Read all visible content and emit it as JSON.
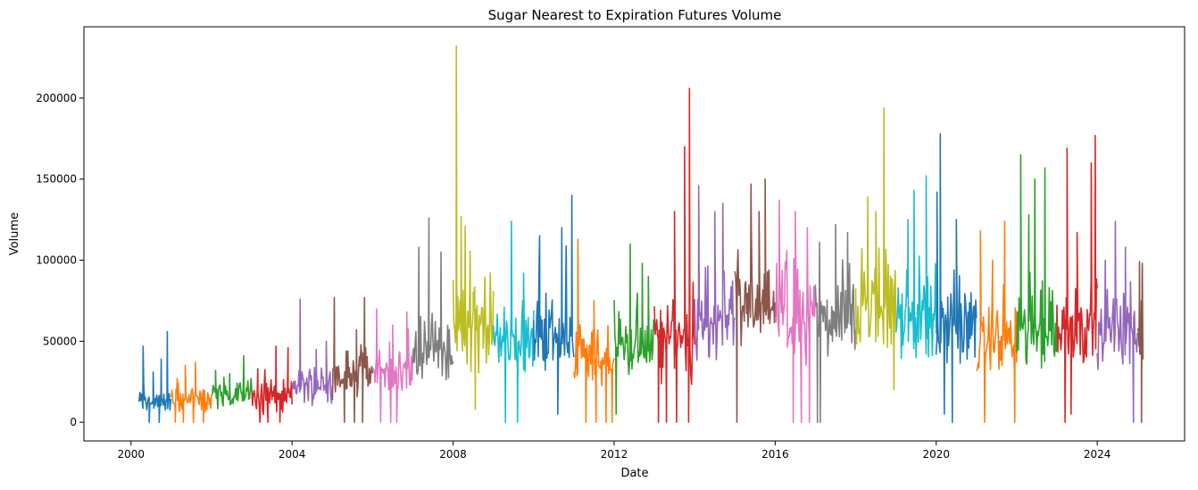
{
  "chart_data": {
    "type": "line",
    "title": "Sugar Nearest to Expiration Futures Volume",
    "xlabel": "Date",
    "ylabel": "Volume",
    "xlim": [
      1998.83,
      2026.17
    ],
    "ylim": [
      -11500,
      244000
    ],
    "x_ticks": [
      2000,
      2004,
      2008,
      2012,
      2016,
      2020,
      2024
    ],
    "x_tick_labels": [
      "2000",
      "2004",
      "2008",
      "2012",
      "2016",
      "2020",
      "2024"
    ],
    "y_ticks": [
      0,
      50000,
      100000,
      150000,
      200000
    ],
    "y_tick_labels": [
      "0",
      "50000",
      "100000",
      "150000",
      "200000"
    ],
    "legend": "none",
    "grid": false,
    "series_note": "One line series per calendar year; values are approximate weekly-resolution summaries (typical level and visible extremes) read off the figure.",
    "series": [
      {
        "name": "2000",
        "color": "#1f77b4",
        "x_start": 2000.2,
        "x_end": 2001.0,
        "base": 13000,
        "noise": 5000,
        "min": 5000,
        "spikes": [
          [
            2000.3,
            47000
          ],
          [
            2000.55,
            31000
          ],
          [
            2000.9,
            56000
          ],
          [
            2000.75,
            39000
          ]
        ],
        "drops": [
          [
            2000.45,
            0
          ],
          [
            2000.7,
            0
          ]
        ]
      },
      {
        "name": "2001",
        "color": "#ff7f0e",
        "x_start": 2001.0,
        "x_end": 2002.0,
        "base": 14000,
        "noise": 6000,
        "min": 0,
        "spikes": [
          [
            2001.35,
            35000
          ],
          [
            2001.6,
            37000
          ],
          [
            2001.15,
            27000
          ]
        ],
        "drops": [
          [
            2001.1,
            0
          ],
          [
            2001.3,
            0
          ],
          [
            2001.55,
            0
          ],
          [
            2001.8,
            0
          ]
        ]
      },
      {
        "name": "2002",
        "color": "#2ca02c",
        "x_start": 2002.0,
        "x_end": 2003.0,
        "base": 17000,
        "noise": 6000,
        "min": 5000,
        "spikes": [
          [
            2002.1,
            32000
          ],
          [
            2002.45,
            30000
          ],
          [
            2002.8,
            41000
          ]
        ],
        "drops": []
      },
      {
        "name": "2003",
        "color": "#d62728",
        "x_start": 2003.0,
        "x_end": 2004.0,
        "base": 15000,
        "noise": 8000,
        "min": 0,
        "spikes": [
          [
            2003.15,
            33000
          ],
          [
            2003.6,
            47000
          ],
          [
            2003.9,
            46000
          ]
        ],
        "drops": [
          [
            2003.2,
            0
          ],
          [
            2003.4,
            0
          ],
          [
            2003.7,
            0
          ]
        ]
      },
      {
        "name": "2004",
        "color": "#9467bd",
        "x_start": 2004.0,
        "x_end": 2005.0,
        "base": 23000,
        "noise": 8000,
        "min": 5000,
        "spikes": [
          [
            2004.2,
            76000
          ],
          [
            2004.6,
            45000
          ],
          [
            2004.85,
            50000
          ]
        ],
        "drops": []
      },
      {
        "name": "2005",
        "color": "#8c564b",
        "x_start": 2005.0,
        "x_end": 2006.0,
        "base": 30000,
        "noise": 12000,
        "min": 0,
        "spikes": [
          [
            2005.05,
            77000
          ],
          [
            2005.6,
            57000
          ],
          [
            2005.8,
            77000
          ]
        ],
        "drops": [
          [
            2005.3,
            0
          ],
          [
            2005.55,
            0
          ],
          [
            2005.75,
            0
          ]
        ]
      },
      {
        "name": "2006",
        "color": "#e377c2",
        "x_start": 2006.0,
        "x_end": 2007.0,
        "base": 30000,
        "noise": 12000,
        "min": 0,
        "spikes": [
          [
            2006.1,
            70000
          ],
          [
            2006.5,
            60000
          ],
          [
            2006.85,
            68000
          ]
        ],
        "drops": [
          [
            2006.2,
            0
          ],
          [
            2006.45,
            0
          ],
          [
            2006.6,
            0
          ]
        ]
      },
      {
        "name": "2007",
        "color": "#7f7f7f",
        "x_start": 2007.0,
        "x_end": 2008.0,
        "base": 45000,
        "noise": 14000,
        "min": 15000,
        "spikes": [
          [
            2007.15,
            108000
          ],
          [
            2007.4,
            126000
          ],
          [
            2007.7,
            105000
          ]
        ],
        "drops": []
      },
      {
        "name": "2008",
        "color": "#bcbd22",
        "x_start": 2008.0,
        "x_end": 2009.0,
        "base": 55000,
        "noise": 18000,
        "min": 8000,
        "spikes": [
          [
            2008.08,
            232000
          ],
          [
            2008.2,
            127000
          ],
          [
            2008.3,
            121000
          ],
          [
            2008.5,
            80000
          ]
        ],
        "drops": [
          [
            2008.55,
            8000
          ]
        ]
      },
      {
        "name": "2009",
        "color": "#17becf",
        "x_start": 2009.0,
        "x_end": 2010.0,
        "base": 50000,
        "noise": 15000,
        "min": 0,
        "spikes": [
          [
            2009.45,
            124000
          ],
          [
            2009.75,
            92000
          ]
        ],
        "drops": [
          [
            2009.3,
            0
          ],
          [
            2009.6,
            0
          ]
        ]
      },
      {
        "name": "2010",
        "color": "#1f77b4",
        "x_start": 2010.0,
        "x_end": 2011.0,
        "base": 55000,
        "noise": 16000,
        "min": 5000,
        "spikes": [
          [
            2010.15,
            115000
          ],
          [
            2010.7,
            120000
          ],
          [
            2010.95,
            140000
          ]
        ],
        "drops": [
          [
            2010.6,
            5000
          ]
        ]
      },
      {
        "name": "2011",
        "color": "#ff7f0e",
        "x_start": 2011.0,
        "x_end": 2012.0,
        "base": 40000,
        "noise": 14000,
        "min": 0,
        "spikes": [
          [
            2011.1,
            113000
          ],
          [
            2011.5,
            75000
          ]
        ],
        "drops": [
          [
            2011.3,
            0
          ],
          [
            2011.55,
            0
          ],
          [
            2011.8,
            0
          ],
          [
            2011.95,
            0
          ]
        ]
      },
      {
        "name": "2012",
        "color": "#2ca02c",
        "x_start": 2012.0,
        "x_end": 2013.0,
        "base": 45000,
        "noise": 15000,
        "min": 5000,
        "spikes": [
          [
            2012.4,
            110000
          ],
          [
            2012.7,
            98000
          ],
          [
            2012.85,
            90000
          ]
        ],
        "drops": [
          [
            2012.05,
            5000
          ]
        ]
      },
      {
        "name": "2013",
        "color": "#d62728",
        "x_start": 2013.0,
        "x_end": 2014.0,
        "base": 50000,
        "noise": 18000,
        "min": 0,
        "spikes": [
          [
            2013.75,
            170000
          ],
          [
            2013.87,
            206000
          ],
          [
            2013.5,
            130000
          ]
        ],
        "drops": [
          [
            2013.1,
            0
          ],
          [
            2013.3,
            0
          ],
          [
            2013.55,
            0
          ],
          [
            2013.85,
            0
          ]
        ]
      },
      {
        "name": "2014",
        "color": "#9467bd",
        "x_start": 2014.0,
        "x_end": 2015.0,
        "base": 60000,
        "noise": 16000,
        "min": 15000,
        "spikes": [
          [
            2014.1,
            146000
          ],
          [
            2014.5,
            130000
          ],
          [
            2014.7,
            135000
          ]
        ],
        "drops": []
      },
      {
        "name": "2015",
        "color": "#8c564b",
        "x_start": 2015.0,
        "x_end": 2016.0,
        "base": 70000,
        "noise": 18000,
        "min": 0,
        "spikes": [
          [
            2015.4,
            147000
          ],
          [
            2015.75,
            150000
          ],
          [
            2015.6,
            130000
          ]
        ],
        "drops": [
          [
            2015.05,
            0
          ]
        ]
      },
      {
        "name": "2016",
        "color": "#e377c2",
        "x_start": 2016.0,
        "x_end": 2017.0,
        "base": 60000,
        "noise": 18000,
        "min": 0,
        "spikes": [
          [
            2016.1,
            137000
          ],
          [
            2016.5,
            130000
          ],
          [
            2016.8,
            120000
          ]
        ],
        "drops": [
          [
            2016.45,
            0
          ],
          [
            2016.65,
            0
          ],
          [
            2016.85,
            0
          ]
        ]
      },
      {
        "name": "2017",
        "color": "#7f7f7f",
        "x_start": 2017.0,
        "x_end": 2018.0,
        "base": 65000,
        "noise": 17000,
        "min": 0,
        "spikes": [
          [
            2017.1,
            111000
          ],
          [
            2017.5,
            122000
          ],
          [
            2017.8,
            117000
          ]
        ],
        "drops": [
          [
            2017.05,
            0
          ],
          [
            2017.12,
            0
          ]
        ]
      },
      {
        "name": "2018",
        "color": "#bcbd22",
        "x_start": 2018.0,
        "x_end": 2019.0,
        "base": 70000,
        "noise": 20000,
        "min": 20000,
        "spikes": [
          [
            2018.7,
            194000
          ],
          [
            2018.3,
            139000
          ],
          [
            2018.5,
            130000
          ]
        ],
        "drops": [
          [
            2018.95,
            20000
          ]
        ]
      },
      {
        "name": "2019",
        "color": "#17becf",
        "x_start": 2019.0,
        "x_end": 2020.0,
        "base": 65000,
        "noise": 20000,
        "min": 20000,
        "spikes": [
          [
            2019.45,
            143000
          ],
          [
            2019.75,
            152000
          ],
          [
            2019.3,
            125000
          ]
        ],
        "drops": []
      },
      {
        "name": "2020",
        "color": "#1f77b4",
        "x_start": 2020.0,
        "x_end": 2021.0,
        "base": 60000,
        "noise": 20000,
        "min": 0,
        "spikes": [
          [
            2020.1,
            178000
          ],
          [
            2020.02,
            142000
          ],
          [
            2020.5,
            125000
          ]
        ],
        "drops": [
          [
            2020.4,
            0
          ],
          [
            2020.2,
            5000
          ]
        ]
      },
      {
        "name": "2021",
        "color": "#ff7f0e",
        "x_start": 2021.0,
        "x_end": 2022.0,
        "base": 50000,
        "noise": 15000,
        "min": 0,
        "spikes": [
          [
            2021.1,
            118000
          ],
          [
            2021.7,
            124000
          ],
          [
            2021.4,
            100000
          ]
        ],
        "drops": [
          [
            2021.2,
            0
          ],
          [
            2021.95,
            0
          ]
        ]
      },
      {
        "name": "2022",
        "color": "#2ca02c",
        "x_start": 2022.0,
        "x_end": 2023.0,
        "base": 55000,
        "noise": 18000,
        "min": 15000,
        "spikes": [
          [
            2022.1,
            165000
          ],
          [
            2022.45,
            150000
          ],
          [
            2022.7,
            157000
          ],
          [
            2022.3,
            128000
          ]
        ],
        "drops": []
      },
      {
        "name": "2023",
        "color": "#d62728",
        "x_start": 2023.0,
        "x_end": 2024.0,
        "base": 60000,
        "noise": 18000,
        "min": 0,
        "spikes": [
          [
            2023.25,
            169000
          ],
          [
            2023.95,
            177000
          ],
          [
            2023.85,
            160000
          ],
          [
            2023.5,
            117000
          ]
        ],
        "drops": [
          [
            2023.2,
            0
          ],
          [
            2023.35,
            5000
          ]
        ]
      },
      {
        "name": "2024",
        "color": "#9467bd",
        "x_start": 2024.0,
        "x_end": 2025.0,
        "base": 55000,
        "noise": 15000,
        "min": 0,
        "spikes": [
          [
            2024.45,
            124000
          ],
          [
            2024.7,
            108000
          ],
          [
            2024.2,
            100000
          ]
        ],
        "drops": [
          [
            2024.9,
            0
          ]
        ]
      },
      {
        "name": "2025",
        "color": "#8c564b",
        "x_start": 2025.0,
        "x_end": 2025.15,
        "base": 60000,
        "noise": 18000,
        "min": 0,
        "spikes": [
          [
            2025.05,
            99000
          ],
          [
            2025.12,
            98000
          ]
        ],
        "drops": [
          [
            2025.1,
            0
          ]
        ]
      }
    ]
  }
}
